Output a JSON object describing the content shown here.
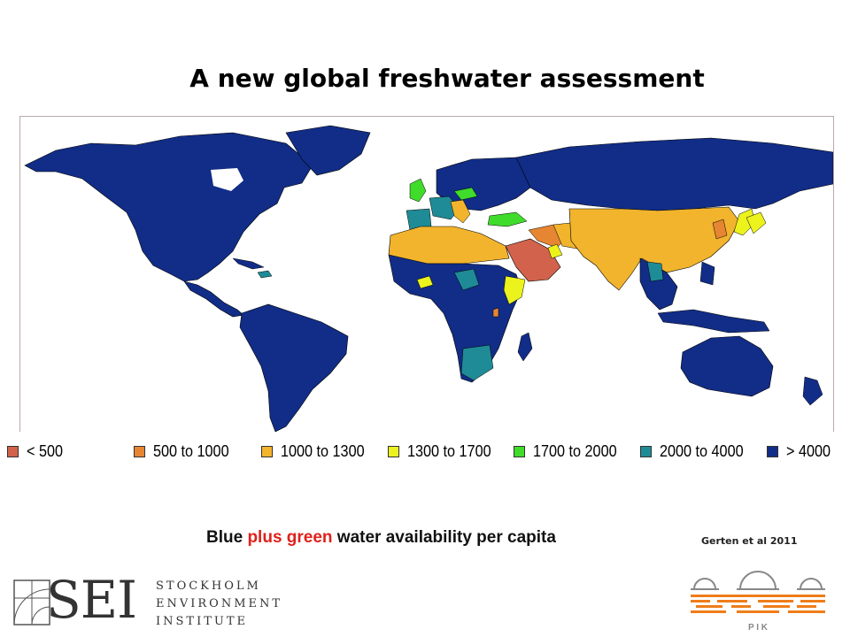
{
  "slide": {
    "title": "A new global freshwater assessment",
    "subtitle_parts": [
      "Blue ",
      "plus green",
      " water availability per capita"
    ],
    "citation": "Gerten et al 2011"
  },
  "legend": [
    {
      "label": "< 500",
      "color": "#d2624b"
    },
    {
      "label": "500 to 1000",
      "color": "#e68532"
    },
    {
      "label": "1000 to 1300",
      "color": "#f1b42c"
    },
    {
      "label": "1300 to 1700",
      "color": "#ecf21c"
    },
    {
      "label": "1700 to 2000",
      "color": "#3fdc2b"
    },
    {
      "label": "2000 to 4000",
      "color": "#1f8b96"
    },
    {
      "label": "> 4000",
      "color": "#112d87"
    }
  ],
  "logos": {
    "sei_letters": "SEI",
    "sei_name_lines": [
      "STOCKHOLM",
      "ENVIRONMENT",
      "INSTITUTE"
    ],
    "pik_text": "P I K"
  }
}
